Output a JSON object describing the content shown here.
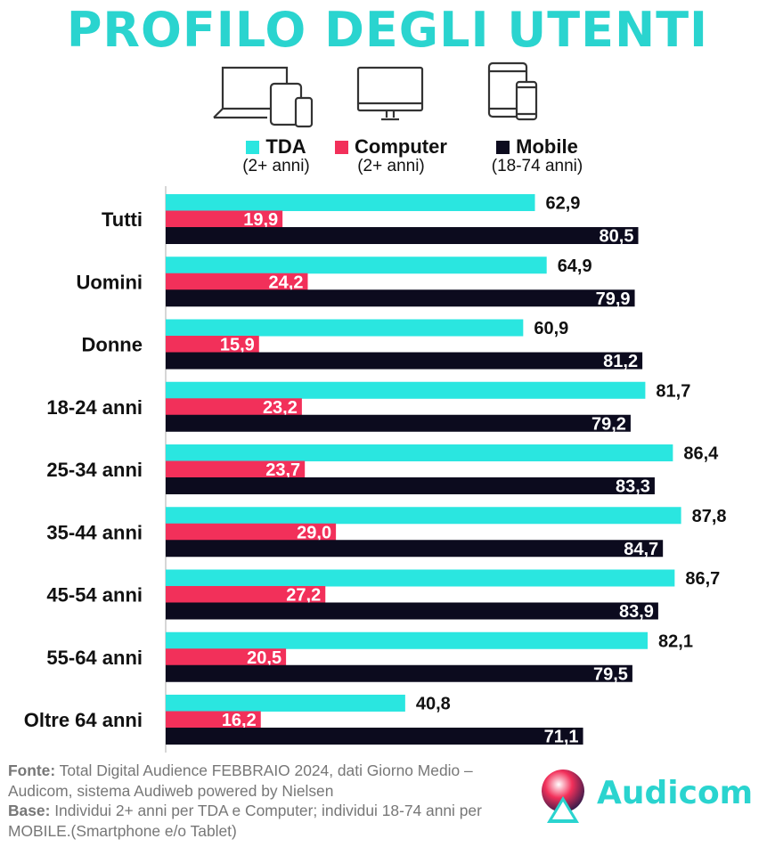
{
  "title": "PROFILO DEGLI UTENTI",
  "icons": [
    "multi-device-icon",
    "desktop-icon",
    "tablet-phone-icon"
  ],
  "legend": [
    {
      "label": "TDA",
      "sub": "(2+ anni)",
      "color": "#2ae6e0"
    },
    {
      "label": "Computer",
      "sub": "(2+ anni)",
      "color": "#f2305a"
    },
    {
      "label": "Mobile",
      "sub": "(18-74 anni)",
      "color": "#0c0b1e"
    }
  ],
  "chart_data": {
    "type": "bar",
    "orientation": "horizontal",
    "categories": [
      "Tutti",
      "Uomini",
      "Donne",
      "18-24 anni",
      "25-34 anni",
      "35-44 anni",
      "45-54 anni",
      "55-64 anni",
      "Oltre 64 anni"
    ],
    "series": [
      {
        "name": "TDA",
        "values": [
          62.9,
          64.9,
          60.9,
          81.7,
          86.4,
          87.8,
          86.7,
          82.1,
          40.8
        ],
        "labels": [
          "62,9",
          "64,9",
          "60,9",
          "81,7",
          "86,4",
          "87,8",
          "86,7",
          "82,1",
          "40,8"
        ],
        "color": "#2ae6e0",
        "label_position": "outside"
      },
      {
        "name": "Computer",
        "values": [
          19.9,
          24.2,
          15.9,
          23.2,
          23.7,
          29.0,
          27.2,
          20.5,
          16.2
        ],
        "labels": [
          "19,9",
          "24,2",
          "15,9",
          "23,2",
          "23,7",
          "29,0",
          "27,2",
          "20,5",
          "16,2"
        ],
        "color": "#f2305a",
        "label_position": "inside"
      },
      {
        "name": "Mobile",
        "values": [
          80.5,
          79.9,
          81.2,
          79.2,
          83.3,
          84.7,
          83.9,
          79.5,
          71.1
        ],
        "labels": [
          "80,5",
          "79,9",
          "81,2",
          "79,2",
          "83,3",
          "84,7",
          "83,9",
          "79,5",
          "71,1"
        ],
        "color": "#0c0b1e",
        "label_position": "inside"
      }
    ],
    "xlim": [
      0,
      100
    ],
    "grid": false
  },
  "footer": {
    "fonte_label": "Fonte:",
    "fonte_text": "Total Digital Audience FEBBRAIO 2024, dati Giorno Medio – Audicom, sistema Audiweb powered by Nielsen",
    "base_label": "Base:",
    "base_text": "Individui 2+ anni per TDA e Computer; individui 18-74 anni per MOBILE.(Smartphone e/o Tablet)"
  },
  "logo": {
    "text": "Audicom"
  }
}
